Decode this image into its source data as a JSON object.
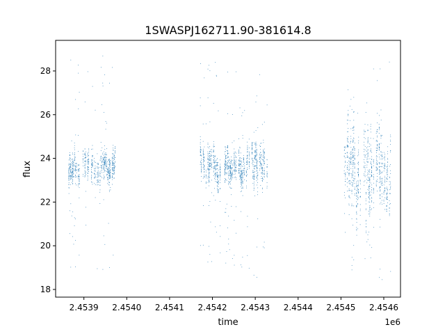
{
  "chart_data": {
    "type": "scatter",
    "title": "1SWASPJ162711.90-381614.8",
    "xlabel": "time",
    "ylabel": "flux",
    "x_offset_label": "1e6",
    "x_tick_values": [
      2453900,
      2454000,
      2454100,
      2454200,
      2454300,
      2454400,
      2454500,
      2454600
    ],
    "x_tick_labels": [
      "2.4539",
      "2.4540",
      "2.4541",
      "2.4542",
      "2.4543",
      "2.4544",
      "2.4545",
      "2.4546"
    ],
    "y_ticks": [
      18,
      20,
      22,
      24,
      26,
      28
    ],
    "xlim": [
      2453834,
      2454639
    ],
    "ylim": [
      17.65,
      29.4
    ],
    "grid": false,
    "marker_color": "#1f77b4",
    "segments": [
      {
        "x_start": 2453865,
        "x_end": 2453975,
        "median": 23.6,
        "spread": 0.55,
        "outlier_low": 18.5,
        "outlier_high": 28.9
      },
      {
        "x_start": 2454172,
        "x_end": 2454332,
        "median": 23.6,
        "spread": 0.6,
        "outlier_low": 18.5,
        "outlier_high": 28.4
      },
      {
        "x_start": 2454508,
        "x_end": 2454620,
        "median": 23.5,
        "spread": 1.2,
        "outlier_low": 18.3,
        "outlier_high": 29.0
      }
    ]
  }
}
